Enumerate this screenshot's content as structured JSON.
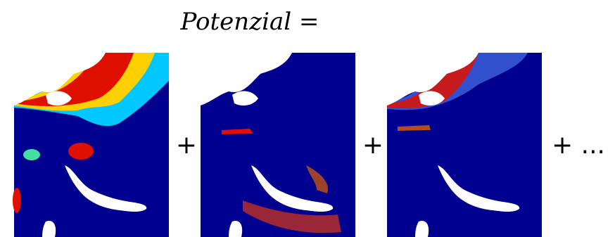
{
  "title": "Potenzial =",
  "operators": [
    "+",
    "+",
    "+ ..."
  ]
}
